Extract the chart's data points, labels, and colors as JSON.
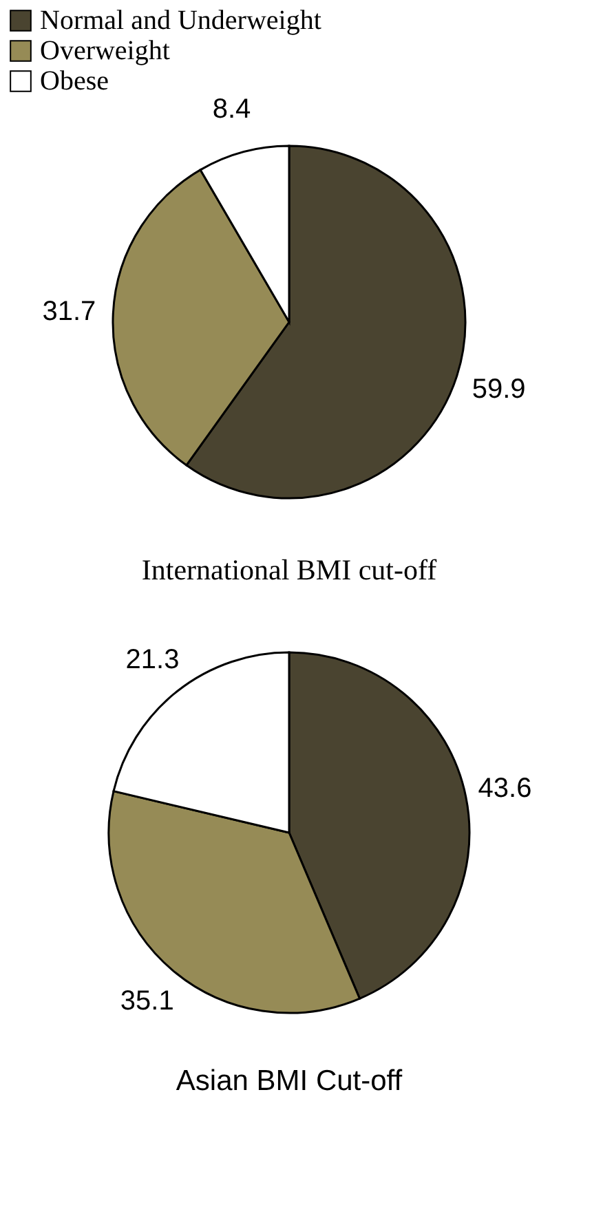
{
  "chart_data": [
    {
      "type": "pie",
      "title": "International BMI cut-off",
      "categories": [
        "Normal and Underweight",
        "Overweight",
        "Obese"
      ],
      "values": [
        59.9,
        31.7,
        8.4
      ],
      "colors": [
        "#4a4430",
        "#968b56",
        "#ffffff"
      ],
      "data_labels": true,
      "legend": "top left"
    },
    {
      "type": "pie",
      "title": "Asian BMI Cut-off",
      "categories": [
        null,
        null,
        null
      ],
      "values": [
        43.6,
        35.1,
        21.3
      ],
      "colors": [
        "#4a4430",
        "#968b56",
        "#ffffff"
      ],
      "data_labels": true
    }
  ]
}
